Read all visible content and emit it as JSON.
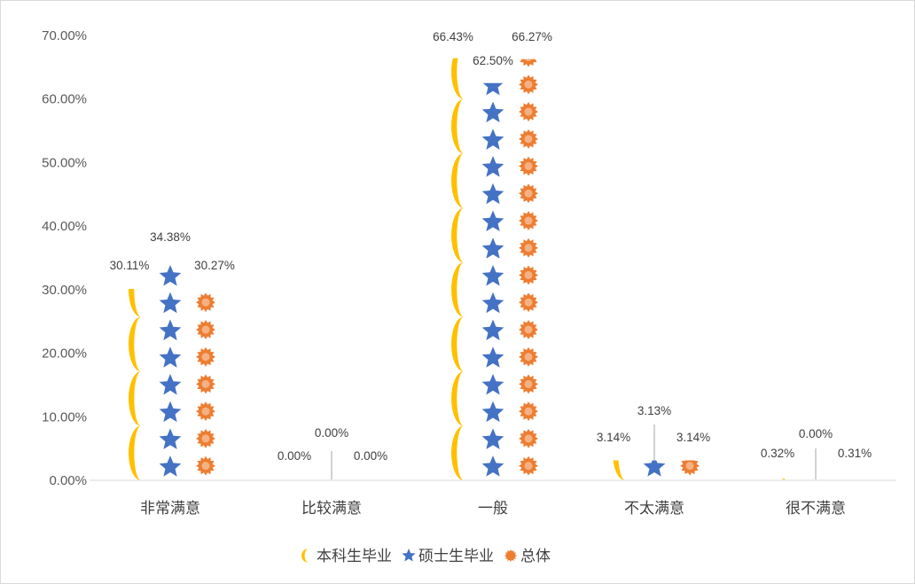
{
  "chart_data": {
    "type": "bar",
    "title": "",
    "xlabel": "",
    "ylabel": "",
    "ylim": [
      0,
      70
    ],
    "yticks": [
      "0.00%",
      "10.00%",
      "20.00%",
      "30.00%",
      "40.00%",
      "50.00%",
      "60.00%",
      "70.00%"
    ],
    "grid": false,
    "legend_position": "bottom",
    "categories": [
      "非常满意",
      "比较满意",
      "一般",
      "不太满意",
      "很不满意"
    ],
    "series": [
      {
        "name": "本科生毕业",
        "marker": "moon-icon",
        "color": "#ffc000",
        "values": [
          30.11,
          0.0,
          66.43,
          3.14,
          0.32
        ],
        "labels": [
          "30.11%",
          "0.00%",
          "66.43%",
          "3.14%",
          "0.32%"
        ]
      },
      {
        "name": "硕士生毕业",
        "marker": "star-icon",
        "color": "#4472c4",
        "values": [
          34.38,
          0.0,
          62.5,
          3.13,
          0.0
        ],
        "labels": [
          "34.38%",
          "0.00%",
          "62.50%",
          "3.13%",
          "0.00%"
        ]
      },
      {
        "name": "总体",
        "marker": "sun-icon",
        "color": "#ed7d31",
        "values": [
          30.27,
          0.0,
          66.27,
          3.14,
          0.31
        ],
        "labels": [
          "30.27%",
          "0.00%",
          "66.27%",
          "3.14%",
          "0.31%"
        ]
      }
    ]
  }
}
